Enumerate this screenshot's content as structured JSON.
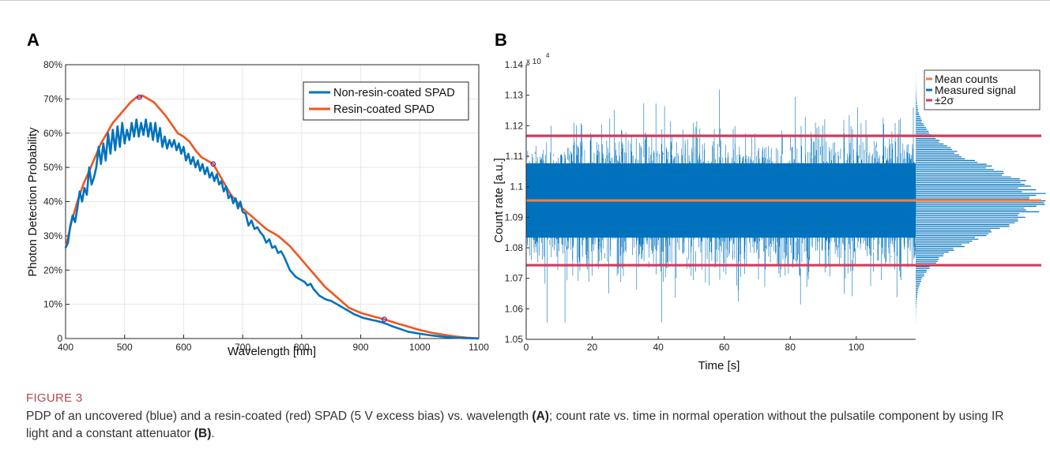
{
  "figure": {
    "label": "FIGURE 3",
    "caption_main": "PDP of an uncovered (blue) and a resin-coated (red) SPAD (5 V excess bias) vs. wavelength ",
    "caption_ref_a": "(A)",
    "caption_middle": "; count rate vs. time in normal operation without the pulsatile component by using IR light and a constant attenuator ",
    "caption_ref_b": "(B)",
    "caption_end": "."
  },
  "colors": {
    "blue": "#0072BD",
    "orange": "#F0561F",
    "mean": "#EE7E4A",
    "sigma": "#D33A5B",
    "marker": "#5B2EC2"
  },
  "chart_data": [
    {
      "panel": "A",
      "type": "line",
      "xlabel": "Wavelength [nm]",
      "ylabel": "Photon Detection Probability",
      "xlim": [
        400,
        1100
      ],
      "ylim": [
        0,
        80
      ],
      "xticks": [
        "400",
        "500",
        "600",
        "700",
        "800",
        "900",
        "1000",
        "1100"
      ],
      "yticks": [
        "0",
        "10%",
        "20%",
        "30%",
        "40%",
        "50%",
        "60%",
        "70%",
        "80%"
      ],
      "grid": true,
      "legend_position": "top-right",
      "series": [
        {
          "name": "Non-resin-coated SPAD",
          "color": "#0072BD",
          "x": [
            400,
            404,
            408,
            412,
            416,
            420,
            424,
            428,
            432,
            436,
            440,
            444,
            448,
            452,
            456,
            460,
            464,
            468,
            472,
            476,
            480,
            484,
            488,
            492,
            496,
            500,
            504,
            508,
            512,
            516,
            520,
            524,
            528,
            532,
            536,
            540,
            544,
            548,
            552,
            556,
            560,
            564,
            568,
            572,
            576,
            580,
            584,
            588,
            592,
            596,
            600,
            604,
            608,
            612,
            616,
            620,
            624,
            628,
            632,
            636,
            640,
            644,
            648,
            652,
            656,
            660,
            664,
            668,
            672,
            676,
            680,
            684,
            688,
            692,
            696,
            700,
            705,
            710,
            715,
            720,
            725,
            730,
            735,
            740,
            745,
            750,
            755,
            760,
            765,
            770,
            775,
            780,
            785,
            790,
            795,
            800,
            805,
            810,
            815,
            820,
            825,
            830,
            835,
            840,
            845,
            850,
            855,
            860,
            865,
            870,
            875,
            880,
            885,
            890,
            895,
            900,
            905,
            910,
            915,
            920,
            925,
            930,
            935,
            940,
            945,
            950,
            960,
            970,
            980,
            990,
            1000,
            1020,
            1040,
            1060,
            1080,
            1100
          ],
          "y": [
            26.5,
            28,
            33,
            36,
            34,
            38,
            43,
            40,
            44,
            42,
            50,
            45,
            47,
            50,
            56,
            51,
            57,
            52,
            60,
            54,
            61,
            55,
            62,
            56,
            63,
            57,
            61,
            58,
            63,
            59,
            64,
            59,
            63,
            59.5,
            64,
            59,
            63,
            58,
            63,
            57.5,
            61.5,
            56,
            59,
            55.5,
            58,
            56,
            58,
            55,
            57,
            54,
            56,
            52,
            54,
            51,
            53,
            50,
            52,
            49,
            51,
            48,
            50,
            47,
            48.5,
            46,
            48,
            45,
            46,
            43,
            44.5,
            41,
            42,
            39.5,
            41,
            38,
            40,
            37,
            36.5,
            33,
            34.5,
            32,
            32.5,
            31,
            30,
            28,
            29,
            26.5,
            27,
            25,
            25.5,
            24,
            22,
            20,
            19,
            18,
            17.5,
            17,
            16.5,
            15.5,
            16,
            14.5,
            13.5,
            12.5,
            12,
            11.5,
            11.2,
            11,
            10.5,
            10,
            9.5,
            9,
            8.5,
            8,
            7.5,
            7,
            6.7,
            6.3,
            6,
            5.8,
            5.6,
            5.4,
            5.2,
            5,
            4.8,
            4.5,
            4.2,
            3.8,
            3.2,
            2.6,
            2,
            1.7,
            1.4,
            0.9,
            0.5,
            0.25,
            0.1,
            0.03
          ],
          "markers": []
        },
        {
          "name": "Resin-coated SPAD",
          "color": "#F0561F",
          "x": [
            400,
            410,
            420,
            430,
            440,
            450,
            460,
            470,
            480,
            490,
            500,
            510,
            520,
            525,
            530,
            540,
            550,
            560,
            570,
            580,
            590,
            600,
            610,
            620,
            630,
            640,
            650,
            660,
            670,
            680,
            690,
            700,
            720,
            740,
            760,
            780,
            800,
            820,
            840,
            860,
            880,
            900,
            920,
            940,
            960,
            980,
            1000,
            1020,
            1040,
            1060,
            1080,
            1100
          ],
          "y": [
            26.5,
            34,
            40,
            45,
            49,
            53,
            57,
            60,
            63,
            65,
            67,
            69,
            70.5,
            70.5,
            71,
            70,
            69,
            67,
            65,
            62.5,
            60,
            59,
            57.5,
            55,
            53,
            52,
            51,
            48,
            45,
            42,
            40,
            38,
            35,
            32,
            30,
            27,
            23,
            19,
            15,
            12,
            9,
            7.5,
            6.5,
            5.6,
            4.5,
            3.5,
            2.5,
            1.7,
            1.1,
            0.6,
            0.25,
            0.05
          ],
          "markers": [
            [
              525,
              70.5
            ],
            [
              650,
              51
            ],
            [
              940,
              5.6
            ]
          ]
        }
      ]
    },
    {
      "panel": "B",
      "type": "line",
      "xlabel": "Time [s]",
      "ylabel": "Count rate  [a.u.]",
      "y_exponent": "x 10",
      "y_exponent_power": "4",
      "xlim": [
        0,
        118
      ],
      "ylim": [
        1.05,
        1.14
      ],
      "xticks": [
        "0",
        "20",
        "40",
        "60",
        "80",
        "100"
      ],
      "yticks": [
        "1.05",
        "1.06",
        "1.07",
        "1.08",
        "1.09",
        "1.1",
        "1.11",
        "1.12",
        "1.13",
        "1.14"
      ],
      "grid": false,
      "legend_position": "top-right",
      "signal_mean": 1.0955,
      "signal_sigma": 0.0106,
      "signal_min": 1.0555,
      "signal_max": 1.1395,
      "series": [
        {
          "name": "Mean counts",
          "color": "#EE7E4A",
          "value": 1.0955
        },
        {
          "name": "Measured signal",
          "color": "#0072BD"
        },
        {
          "name": "±2σ",
          "color": "#D33A5B",
          "values": [
            1.0743,
            1.1167
          ]
        }
      ]
    }
  ]
}
